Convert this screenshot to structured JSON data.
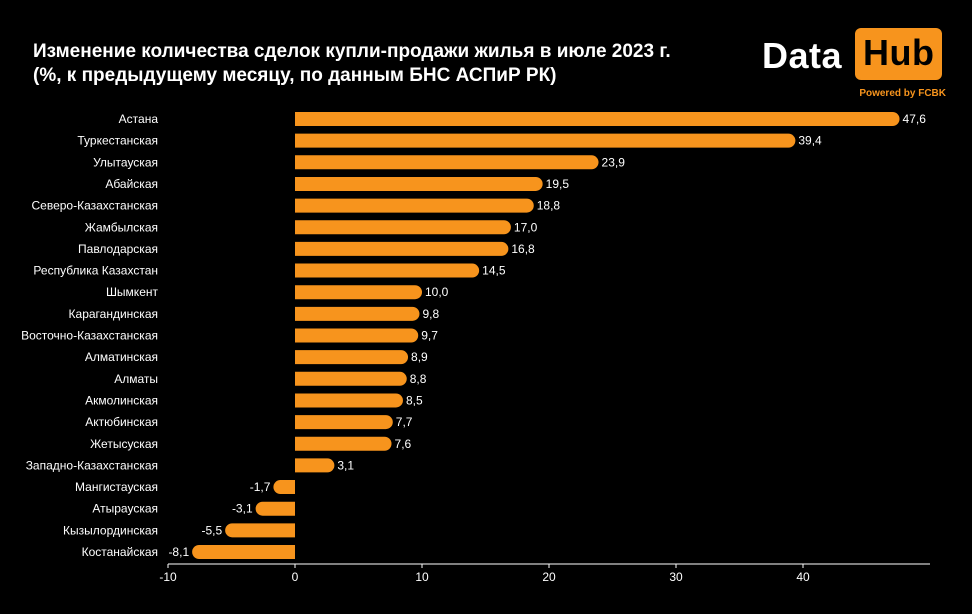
{
  "title_line1": "Изменение количества сделок купли-продажи жилья в июле 2023 г.",
  "title_line2": "(%, к предыдущему месяцу, по данным БНС АСПиР РК)",
  "logo": {
    "word1": "Data",
    "word2": "Hub",
    "tagline": "Powered by FCBK",
    "accent_color": "#f7941d"
  },
  "chart_data": {
    "type": "bar",
    "orientation": "horizontal",
    "categories": [
      "Астана",
      "Туркестанская",
      "Улытауская",
      "Абайская",
      "Северо-Казахстанская",
      "Жамбылская",
      "Павлодарская",
      "Республика Казахстан",
      "Шымкент",
      "Карагандинская",
      "Восточно-Казахстанская",
      "Алматинская",
      "Алматы",
      "Акмолинская",
      "Актюбинская",
      "Жетысуская",
      "Западно-Казахстанская",
      "Мангистауская",
      "Атырауская",
      "Кызылординская",
      "Костанайская"
    ],
    "values": [
      47.6,
      39.4,
      23.9,
      19.5,
      18.8,
      17.0,
      16.8,
      14.5,
      10.0,
      9.8,
      9.7,
      8.9,
      8.8,
      8.5,
      7.7,
      7.6,
      3.1,
      -1.7,
      -3.1,
      -5.5,
      -8.1
    ],
    "value_labels": [
      "47,6",
      "39,4",
      "23,9",
      "19,5",
      "18,8",
      "17,0",
      "16,8",
      "14,5",
      "10,0",
      "9,8",
      "9,7",
      "8,9",
      "8,8",
      "8,5",
      "7,7",
      "7,6",
      "3,1",
      "-1,7",
      "-3,1",
      "-5,5",
      "-8,1"
    ],
    "xlim": [
      -10,
      50
    ],
    "xticks": [
      -10,
      0,
      10,
      20,
      30,
      40
    ],
    "grid": false,
    "bar_color": "#f7941d"
  }
}
